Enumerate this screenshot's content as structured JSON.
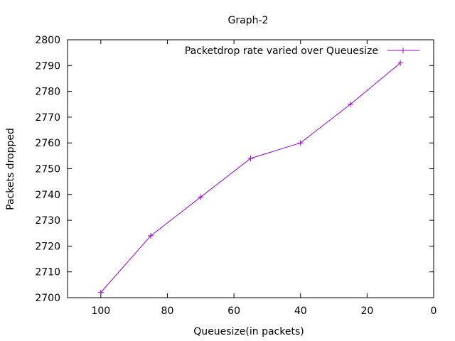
{
  "chart_data": {
    "type": "line",
    "title": "Graph-2",
    "xlabel": "Queuesize(in packets)",
    "ylabel": "Packets dropped",
    "xlim": [
      110,
      0
    ],
    "x_reversed": true,
    "ylim": [
      2700,
      2800
    ],
    "x_ticks": [
      100,
      80,
      60,
      40,
      20,
      0
    ],
    "y_ticks": [
      2700,
      2710,
      2720,
      2730,
      2740,
      2750,
      2760,
      2770,
      2780,
      2790,
      2800
    ],
    "grid": false,
    "legend_position": "top-right",
    "series": [
      {
        "name": "Packetdrop rate varied over Queuesize",
        "color": "#9400d3",
        "marker": "plus",
        "x": [
          100,
          85,
          70,
          55,
          40,
          25,
          10
        ],
        "y": [
          2702,
          2724,
          2739,
          2754,
          2760,
          2775,
          2791
        ]
      }
    ]
  }
}
